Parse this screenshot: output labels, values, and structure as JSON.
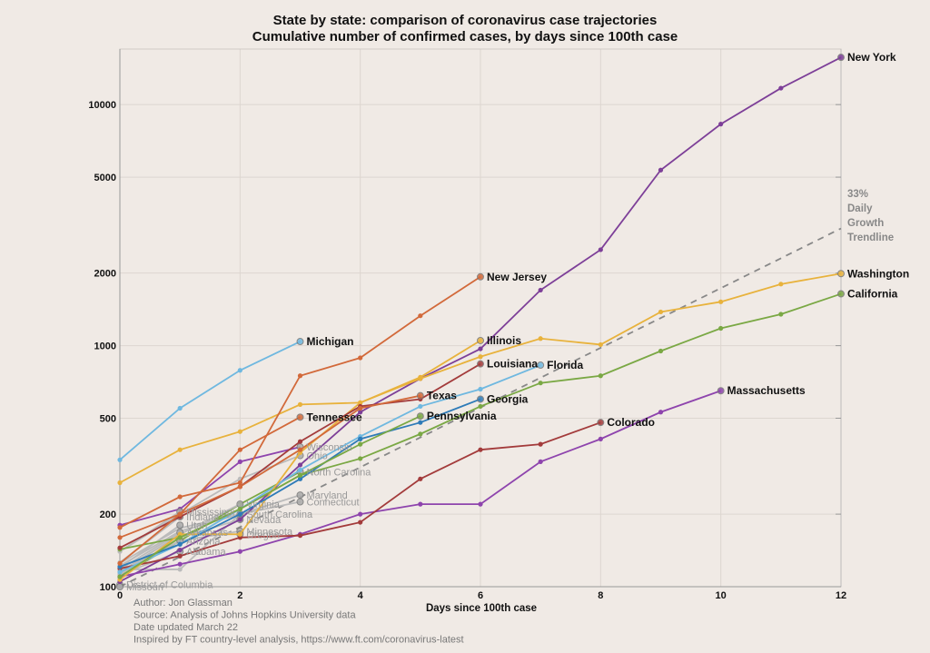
{
  "chart_data": {
    "type": "line",
    "title": "State by state: comparison of coronavirus case trajectories",
    "subtitle": "Cumulative number of confirmed cases, by days since 100th case",
    "xlabel": "Days since 100th case",
    "ylabel": "",
    "yscale": "log",
    "xlim": [
      0,
      12
    ],
    "ylim": [
      100,
      17000
    ],
    "xticks": [
      0,
      2,
      4,
      6,
      8,
      10,
      12
    ],
    "yticks": [
      100,
      200,
      500,
      1000,
      2000,
      5000,
      10000
    ],
    "grid": true,
    "trendline": {
      "name": "33% Daily Growth Trendline",
      "label_lines": [
        "33%",
        "Daily",
        "Growth",
        "Trendline"
      ],
      "start": 100,
      "daily_growth": 0.33,
      "color": "#888888"
    },
    "credits": [
      "Author: Jon Glassman",
      "Source: Analysis of Johns Hopkins University data",
      "Date updated March 22",
      "Inspired by FT country-level analysis, https://www.ft.com/coronavirus-latest"
    ],
    "series": [
      {
        "name": "New York",
        "major": true,
        "color": "#7d3f98",
        "values": [
          105,
          142,
          190,
          320,
          530,
          730,
          970,
          1700,
          2500,
          5350,
          8300,
          11700,
          15700
        ]
      },
      {
        "name": "Washington",
        "major": true,
        "color": "#e8b23c",
        "values": [
          270,
          370,
          440,
          570,
          580,
          730,
          900,
          1070,
          1010,
          1380,
          1520,
          1800,
          1990
        ]
      },
      {
        "name": "California",
        "major": true,
        "color": "#7aa844",
        "values": [
          143,
          160,
          210,
          290,
          340,
          430,
          560,
          700,
          750,
          950,
          1180,
          1350,
          1640
        ]
      },
      {
        "name": "Massachusetts",
        "major": true,
        "color": "#8e44ad",
        "values": [
          110,
          124,
          140,
          165,
          200,
          220,
          220,
          330,
          410,
          530,
          650
        ]
      },
      {
        "name": "Colorado",
        "major": true,
        "color": "#a33b3b",
        "values": [
          119,
          134,
          160,
          163,
          185,
          280,
          370,
          390,
          480
        ]
      },
      {
        "name": "Florida",
        "major": true,
        "color": "#6fb8e0",
        "values": [
          115,
          150,
          210,
          305,
          420,
          560,
          660,
          830
        ]
      },
      {
        "name": "New Jersey",
        "major": true,
        "color": "#d2693a",
        "values": [
          176,
          236,
          270,
          750,
          890,
          1330,
          1930
        ]
      },
      {
        "name": "Illinois",
        "major": true,
        "color": "#e8b23c",
        "values": [
          107,
          165,
          165,
          360,
          580,
          740,
          1050
        ]
      },
      {
        "name": "Louisiana",
        "major": true,
        "color": "#a33b3b",
        "values": [
          145,
          195,
          260,
          400,
          560,
          600,
          840
        ]
      },
      {
        "name": "Georgia",
        "major": true,
        "color": "#2e7bb8",
        "values": [
          121,
          150,
          200,
          280,
          410,
          480,
          600
        ]
      },
      {
        "name": "Texas",
        "major": true,
        "color": "#d2693a",
        "values": [
          160,
          200,
          260,
          370,
          550,
          620
        ]
      },
      {
        "name": "Pennsylvania",
        "major": true,
        "color": "#7aa844",
        "values": [
          110,
          160,
          210,
          290,
          390,
          510
        ]
      },
      {
        "name": "Michigan",
        "major": true,
        "color": "#6fb8e0",
        "values": [
          336,
          550,
          790,
          1040
        ]
      },
      {
        "name": "Tennessee",
        "major": true,
        "color": "#d2693a",
        "values": [
          125,
          200,
          370,
          505
        ]
      },
      {
        "name": "Wisconsin",
        "major": false,
        "color": "#8e44ad",
        "values": [
          180,
          210,
          330,
          380
        ]
      },
      {
        "name": "Ohio",
        "major": false,
        "color": "#bbbbbb",
        "values": [
          140,
          200,
          280,
          350
        ]
      },
      {
        "name": "North Carolina",
        "major": false,
        "color": "#7aa844",
        "values": [
          110,
          155,
          220,
          300
        ]
      },
      {
        "name": "Maryland",
        "major": false,
        "color": "#bbbbbb",
        "values": [
          122,
          170,
          200,
          240
        ]
      },
      {
        "name": "Connecticut",
        "major": false,
        "color": "#bbbbbb",
        "values": [
          118,
          118,
          200,
          225
        ]
      },
      {
        "name": "Virginia",
        "major": false,
        "color": "#bbbbbb",
        "values": [
          115,
          165,
          220
        ]
      },
      {
        "name": "South Carolina",
        "major": false,
        "color": "#bbbbbb",
        "values": [
          125,
          175,
          200
        ]
      },
      {
        "name": "Nevada",
        "major": false,
        "color": "#bbbbbb",
        "values": [
          109,
          160,
          190
        ]
      },
      {
        "name": "Minnesota",
        "major": false,
        "color": "#bbbbbb",
        "values": [
          113,
          155,
          170
        ]
      },
      {
        "name": "Oregon",
        "major": false,
        "color": "#bbbbbb",
        "values": [
          114,
          165,
          165
        ]
      },
      {
        "name": "Mississippi",
        "major": false,
        "color": "#bbbbbb",
        "values": [
          140,
          205
        ]
      },
      {
        "name": "Indiana",
        "major": false,
        "color": "#bbbbbb",
        "values": [
          126,
          195
        ]
      },
      {
        "name": "Utah",
        "major": false,
        "color": "#bbbbbb",
        "values": [
          120,
          180
        ]
      },
      {
        "name": "Arkansas",
        "major": false,
        "color": "#bbbbbb",
        "values": [
          118,
          168
        ]
      },
      {
        "name": "Arizona",
        "major": false,
        "color": "#bbbbbb",
        "values": [
          116,
          155
        ]
      },
      {
        "name": "Alabama",
        "major": false,
        "color": "#bbbbbb",
        "values": [
          112,
          140
        ]
      },
      {
        "name": "District of Columbia",
        "major": false,
        "color": "#bbbbbb",
        "values": [
          102
        ]
      },
      {
        "name": "Missouri",
        "major": false,
        "color": "#bbbbbb",
        "values": [
          100
        ]
      }
    ]
  }
}
